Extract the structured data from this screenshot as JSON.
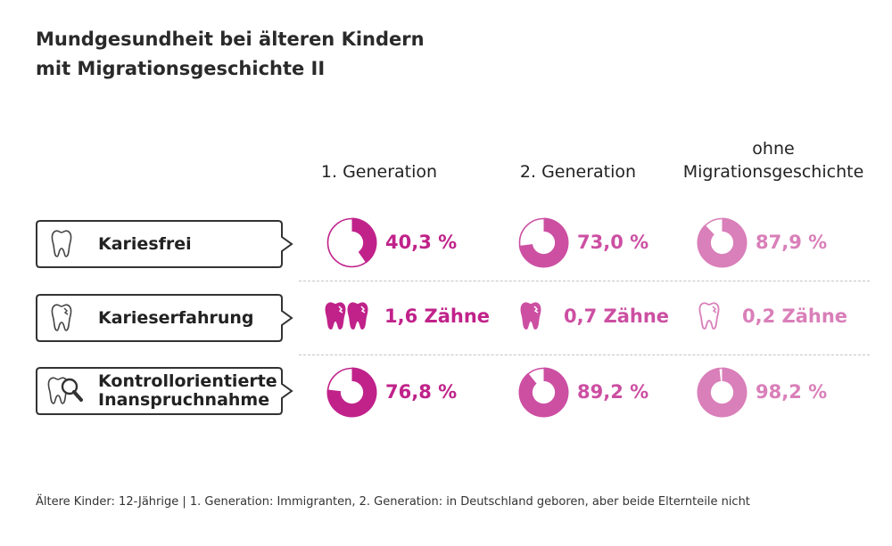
{
  "title": {
    "line1": "Mundgesundheit bei älteren Kindern",
    "line2": "mit Migrationsgeschichte II"
  },
  "columns": [
    {
      "line1": "",
      "line2": "1. Generation",
      "color": "#c0228a"
    },
    {
      "line1": "",
      "line2": "2. Generation",
      "color": "#cc4fa2"
    },
    {
      "line1": "ohne",
      "line2": "Migrationsgeschichte",
      "color": "#d97fb9"
    }
  ],
  "rows": [
    {
      "line1": "Kariesfrei",
      "line2": "",
      "icon": "tooth-icon"
    },
    {
      "line1": "Karieserfahrung",
      "line2": "",
      "icon": "decayed-tooth-icon"
    },
    {
      "line1": "Kontrollorientierte",
      "line2": "Inanspruchnahme",
      "icon": "tooth-magnifier-icon"
    }
  ],
  "chart_data": {
    "type": "table",
    "columns": [
      "1. Generation",
      "2. Generation",
      "ohne Migrationsgeschichte"
    ],
    "rows": [
      {
        "name": "Kariesfrei",
        "values": [
          40.3,
          73.0,
          87.9
        ],
        "labels": [
          "40,3 %",
          "73,0 %",
          "87,9 %"
        ],
        "unit": "%"
      },
      {
        "name": "Karieserfahrung",
        "values": [
          1.6,
          0.7,
          0.2
        ],
        "labels": [
          "1,6 Zähne",
          "0,7 Zähne",
          "0,2 Zähne"
        ],
        "unit": "Zähne"
      },
      {
        "name": "Kontrollorientierte Inanspruchnahme",
        "values": [
          76.8,
          89.2,
          98.2
        ],
        "labels": [
          "76,8 %",
          "89,2 %",
          "98,2 %"
        ],
        "unit": "%"
      }
    ]
  },
  "footnote": "Ältere Kinder: 12-Jährige | 1. Generation: Immigranten, 2. Generation: in Deutschland geboren, aber beide Elternteile nicht"
}
